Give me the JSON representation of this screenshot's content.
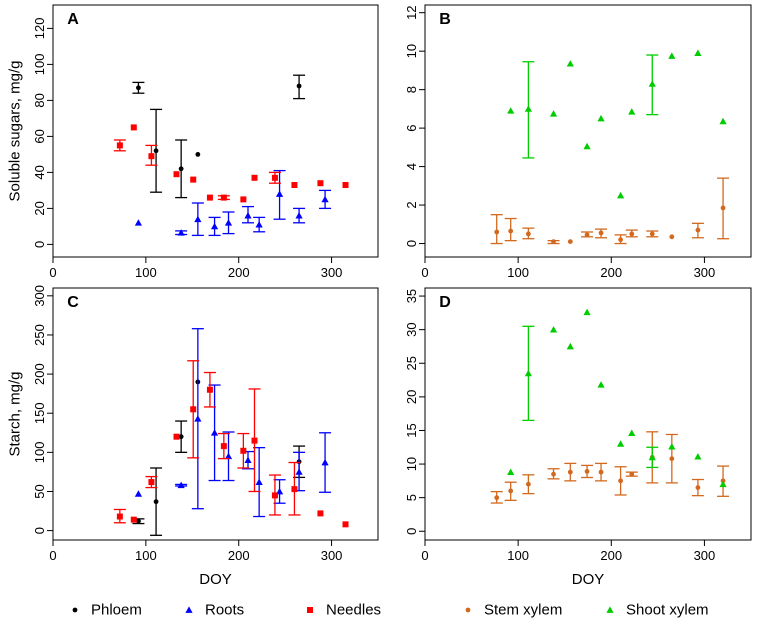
{
  "colors": {
    "phloem": "#000000",
    "roots": "#0000ff",
    "needles": "#ff0000",
    "stem_xylem": "#d2691e",
    "shoot_xylem": "#00cd00"
  },
  "legend": [
    {
      "name": "Phloem",
      "marker": "circle",
      "color_key": "phloem"
    },
    {
      "name": "Roots",
      "marker": "triangle",
      "color_key": "roots"
    },
    {
      "name": "Needles",
      "marker": "square",
      "color_key": "needles"
    },
    {
      "name": "Stem xylem",
      "marker": "circle",
      "color_key": "stem_xylem"
    },
    {
      "name": "Shoot xylem",
      "marker": "triangle",
      "color_key": "shoot_xylem"
    }
  ],
  "chart_data": [
    {
      "type": "scatter",
      "label": "A",
      "ylabel": "Soluble sugars, mg/g",
      "xlabel": "",
      "xlim": [
        0,
        350
      ],
      "ylim": [
        -7,
        133
      ],
      "xticks": [
        0,
        100,
        200,
        300
      ],
      "yticks": [
        0,
        20,
        40,
        60,
        80,
        100,
        120
      ],
      "series": [
        {
          "name": "Phloem",
          "marker": "circle",
          "color_key": "phloem",
          "x_offset": 0,
          "points": [
            {
              "x": 92,
              "y": 87,
              "lo": 84,
              "hi": 90
            },
            {
              "x": 111,
              "y": 52,
              "lo": 29,
              "hi": 75
            },
            {
              "x": 138,
              "y": 42,
              "lo": 26,
              "hi": 58
            },
            {
              "x": 156,
              "y": 50
            },
            {
              "x": 265,
              "y": 88,
              "lo": 81,
              "hi": 94
            }
          ]
        },
        {
          "name": "Roots",
          "marker": "triangle",
          "color_key": "roots",
          "x_offset": 0,
          "points": [
            {
              "x": 92,
              "y": 12
            },
            {
              "x": 138,
              "y": 6.5,
              "lo": 5.5,
              "hi": 7.5
            },
            {
              "x": 156,
              "y": 14,
              "lo": 5,
              "hi": 23
            },
            {
              "x": 174,
              "y": 10,
              "lo": 5,
              "hi": 15
            },
            {
              "x": 189,
              "y": 12,
              "lo": 6,
              "hi": 18
            },
            {
              "x": 210,
              "y": 16,
              "lo": 12,
              "hi": 21
            },
            {
              "x": 222,
              "y": 11,
              "lo": 7,
              "hi": 15
            },
            {
              "x": 244,
              "y": 28,
              "lo": 14,
              "hi": 41
            },
            {
              "x": 265,
              "y": 16,
              "lo": 12,
              "hi": 20
            },
            {
              "x": 293,
              "y": 25,
              "lo": 20,
              "hi": 30
            }
          ]
        },
        {
          "name": "Needles",
          "marker": "square",
          "color_key": "needles",
          "x_offset": -5,
          "points": [
            {
              "x": 77,
              "y": 55,
              "lo": 52,
              "hi": 58
            },
            {
              "x": 92,
              "y": 65
            },
            {
              "x": 111,
              "y": 49,
              "lo": 44,
              "hi": 55
            },
            {
              "x": 138,
              "y": 39
            },
            {
              "x": 156,
              "y": 36
            },
            {
              "x": 174,
              "y": 26
            },
            {
              "x": 189,
              "y": 26,
              "lo": 25,
              "hi": 27
            },
            {
              "x": 210,
              "y": 25
            },
            {
              "x": 222,
              "y": 37
            },
            {
              "x": 244,
              "y": 37,
              "lo": 34,
              "hi": 40
            },
            {
              "x": 265,
              "y": 33
            },
            {
              "x": 293,
              "y": 34
            },
            {
              "x": 320,
              "y": 33
            }
          ]
        }
      ]
    },
    {
      "type": "scatter",
      "label": "B",
      "ylabel": "",
      "xlabel": "",
      "xlim": [
        0,
        350
      ],
      "ylim": [
        -0.7,
        12.4
      ],
      "xticks": [
        0,
        100,
        200,
        300
      ],
      "yticks": [
        0,
        2,
        4,
        6,
        8,
        10,
        12
      ],
      "series": [
        {
          "name": "Stem xylem",
          "marker": "circle",
          "color_key": "stem_xylem",
          "x_offset": 0,
          "points": [
            {
              "x": 77,
              "y": 0.6,
              "lo": 0,
              "hi": 1.5
            },
            {
              "x": 92,
              "y": 0.65,
              "lo": 0.15,
              "hi": 1.3
            },
            {
              "x": 111,
              "y": 0.5,
              "lo": 0.25,
              "hi": 0.8
            },
            {
              "x": 138,
              "y": 0.1,
              "lo": 0,
              "hi": 0.15
            },
            {
              "x": 156,
              "y": 0.1
            },
            {
              "x": 174,
              "y": 0.45,
              "lo": 0.35,
              "hi": 0.6
            },
            {
              "x": 189,
              "y": 0.55,
              "lo": 0.3,
              "hi": 0.75
            },
            {
              "x": 210,
              "y": 0.2,
              "lo": 0,
              "hi": 0.45
            },
            {
              "x": 222,
              "y": 0.5,
              "lo": 0.35,
              "hi": 0.7
            },
            {
              "x": 244,
              "y": 0.5,
              "lo": 0.35,
              "hi": 0.65
            },
            {
              "x": 265,
              "y": 0.35
            },
            {
              "x": 293,
              "y": 0.7,
              "lo": 0.3,
              "hi": 1.05
            },
            {
              "x": 320,
              "y": 1.85,
              "lo": 0.25,
              "hi": 3.4
            }
          ]
        },
        {
          "name": "Shoot xylem",
          "marker": "triangle",
          "color_key": "shoot_xylem",
          "x_offset": 0,
          "points": [
            {
              "x": 92,
              "y": 6.9
            },
            {
              "x": 111,
              "y": 7.0,
              "lo": 4.45,
              "hi": 9.45
            },
            {
              "x": 138,
              "y": 6.75
            },
            {
              "x": 156,
              "y": 9.35
            },
            {
              "x": 174,
              "y": 5.05
            },
            {
              "x": 189,
              "y": 6.5
            },
            {
              "x": 210,
              "y": 2.5
            },
            {
              "x": 222,
              "y": 6.85
            },
            {
              "x": 244,
              "y": 8.3,
              "lo": 6.7,
              "hi": 9.8
            },
            {
              "x": 265,
              "y": 9.75
            },
            {
              "x": 293,
              "y": 9.9
            },
            {
              "x": 320,
              "y": 6.35
            }
          ]
        }
      ]
    },
    {
      "type": "scatter",
      "label": "C",
      "ylabel": "Starch, mg/g",
      "xlabel": "DOY",
      "xlim": [
        0,
        350
      ],
      "ylim": [
        -12,
        310
      ],
      "xticks": [
        0,
        100,
        200,
        300
      ],
      "yticks": [
        0,
        50,
        100,
        150,
        200,
        250,
        300
      ],
      "series": [
        {
          "name": "Phloem",
          "marker": "circle",
          "color_key": "phloem",
          "x_offset": 0,
          "points": [
            {
              "x": 92,
              "y": 12,
              "lo": 9,
              "hi": 15
            },
            {
              "x": 111,
              "y": 37,
              "lo": -6,
              "hi": 80
            },
            {
              "x": 138,
              "y": 120,
              "lo": 100,
              "hi": 140
            },
            {
              "x": 156,
              "y": 190
            },
            {
              "x": 265,
              "y": 88,
              "lo": 68,
              "hi": 108
            }
          ]
        },
        {
          "name": "Roots",
          "marker": "triangle",
          "color_key": "roots",
          "x_offset": 0,
          "points": [
            {
              "x": 92,
              "y": 47
            },
            {
              "x": 138,
              "y": 58,
              "lo": 57,
              "hi": 59
            },
            {
              "x": 156,
              "y": 143,
              "lo": 28,
              "hi": 258
            },
            {
              "x": 174,
              "y": 125,
              "lo": 64,
              "hi": 186
            },
            {
              "x": 189,
              "y": 95,
              "lo": 64,
              "hi": 126
            },
            {
              "x": 210,
              "y": 90,
              "lo": 79,
              "hi": 101
            },
            {
              "x": 222,
              "y": 62,
              "lo": 18,
              "hi": 106
            },
            {
              "x": 244,
              "y": 50,
              "lo": 35,
              "hi": 65
            },
            {
              "x": 265,
              "y": 75,
              "lo": 51,
              "hi": 100
            },
            {
              "x": 293,
              "y": 87,
              "lo": 49,
              "hi": 125
            }
          ]
        },
        {
          "name": "Needles",
          "marker": "square",
          "color_key": "needles",
          "x_offset": -5,
          "points": [
            {
              "x": 77,
              "y": 18,
              "lo": 10,
              "hi": 27
            },
            {
              "x": 92,
              "y": 14
            },
            {
              "x": 111,
              "y": 62,
              "lo": 55,
              "hi": 69
            },
            {
              "x": 138,
              "y": 120
            },
            {
              "x": 156,
              "y": 155,
              "lo": 93,
              "hi": 217
            },
            {
              "x": 174,
              "y": 180,
              "lo": 158,
              "hi": 202
            },
            {
              "x": 189,
              "y": 108,
              "lo": 92,
              "hi": 124
            },
            {
              "x": 210,
              "y": 102,
              "lo": 80,
              "hi": 124
            },
            {
              "x": 222,
              "y": 115,
              "lo": 50,
              "hi": 181
            },
            {
              "x": 244,
              "y": 45,
              "lo": 20,
              "hi": 71
            },
            {
              "x": 265,
              "y": 53,
              "lo": 20,
              "hi": 87
            },
            {
              "x": 293,
              "y": 22
            },
            {
              "x": 320,
              "y": 8
            }
          ]
        }
      ]
    },
    {
      "type": "scatter",
      "label": "D",
      "ylabel": "",
      "xlabel": "DOY",
      "xlim": [
        0,
        350
      ],
      "ylim": [
        -1.3,
        36.2
      ],
      "xticks": [
        0,
        100,
        200,
        300
      ],
      "yticks": [
        0,
        5,
        10,
        15,
        20,
        25,
        30,
        35
      ],
      "series": [
        {
          "name": "Stem xylem",
          "marker": "circle",
          "color_key": "stem_xylem",
          "x_offset": 0,
          "points": [
            {
              "x": 77,
              "y": 5.0,
              "lo": 4.2,
              "hi": 5.9
            },
            {
              "x": 92,
              "y": 6.0,
              "lo": 4.6,
              "hi": 7.3
            },
            {
              "x": 111,
              "y": 7.0,
              "lo": 5.6,
              "hi": 8.4
            },
            {
              "x": 138,
              "y": 8.5,
              "lo": 7.8,
              "hi": 9.3
            },
            {
              "x": 156,
              "y": 8.8,
              "lo": 7.5,
              "hi": 10.1
            },
            {
              "x": 174,
              "y": 8.9,
              "lo": 8.0,
              "hi": 9.8
            },
            {
              "x": 189,
              "y": 8.8,
              "lo": 7.5,
              "hi": 10.1
            },
            {
              "x": 210,
              "y": 7.5,
              "lo": 5.4,
              "hi": 9.6
            },
            {
              "x": 222,
              "y": 8.5,
              "lo": 8.2,
              "hi": 8.8
            },
            {
              "x": 244,
              "y": 11.0,
              "lo": 7.2,
              "hi": 14.8
            },
            {
              "x": 265,
              "y": 10.8,
              "lo": 7.2,
              "hi": 14.4
            },
            {
              "x": 293,
              "y": 6.5,
              "lo": 5.3,
              "hi": 7.7
            },
            {
              "x": 320,
              "y": 7.5,
              "lo": 5.2,
              "hi": 9.7
            }
          ]
        },
        {
          "name": "Shoot xylem",
          "marker": "triangle",
          "color_key": "shoot_xylem",
          "x_offset": 0,
          "points": [
            {
              "x": 92,
              "y": 8.8
            },
            {
              "x": 111,
              "y": 23.5,
              "lo": 16.5,
              "hi": 30.5
            },
            {
              "x": 138,
              "y": 30.0
            },
            {
              "x": 156,
              "y": 27.5
            },
            {
              "x": 174,
              "y": 32.6
            },
            {
              "x": 189,
              "y": 21.8
            },
            {
              "x": 210,
              "y": 13.0
            },
            {
              "x": 222,
              "y": 14.6
            },
            {
              "x": 244,
              "y": 11.0,
              "lo": 9.5,
              "hi": 12.5
            },
            {
              "x": 265,
              "y": 12.6
            },
            {
              "x": 293,
              "y": 11.1
            },
            {
              "x": 320,
              "y": 7.0
            }
          ]
        }
      ]
    }
  ]
}
